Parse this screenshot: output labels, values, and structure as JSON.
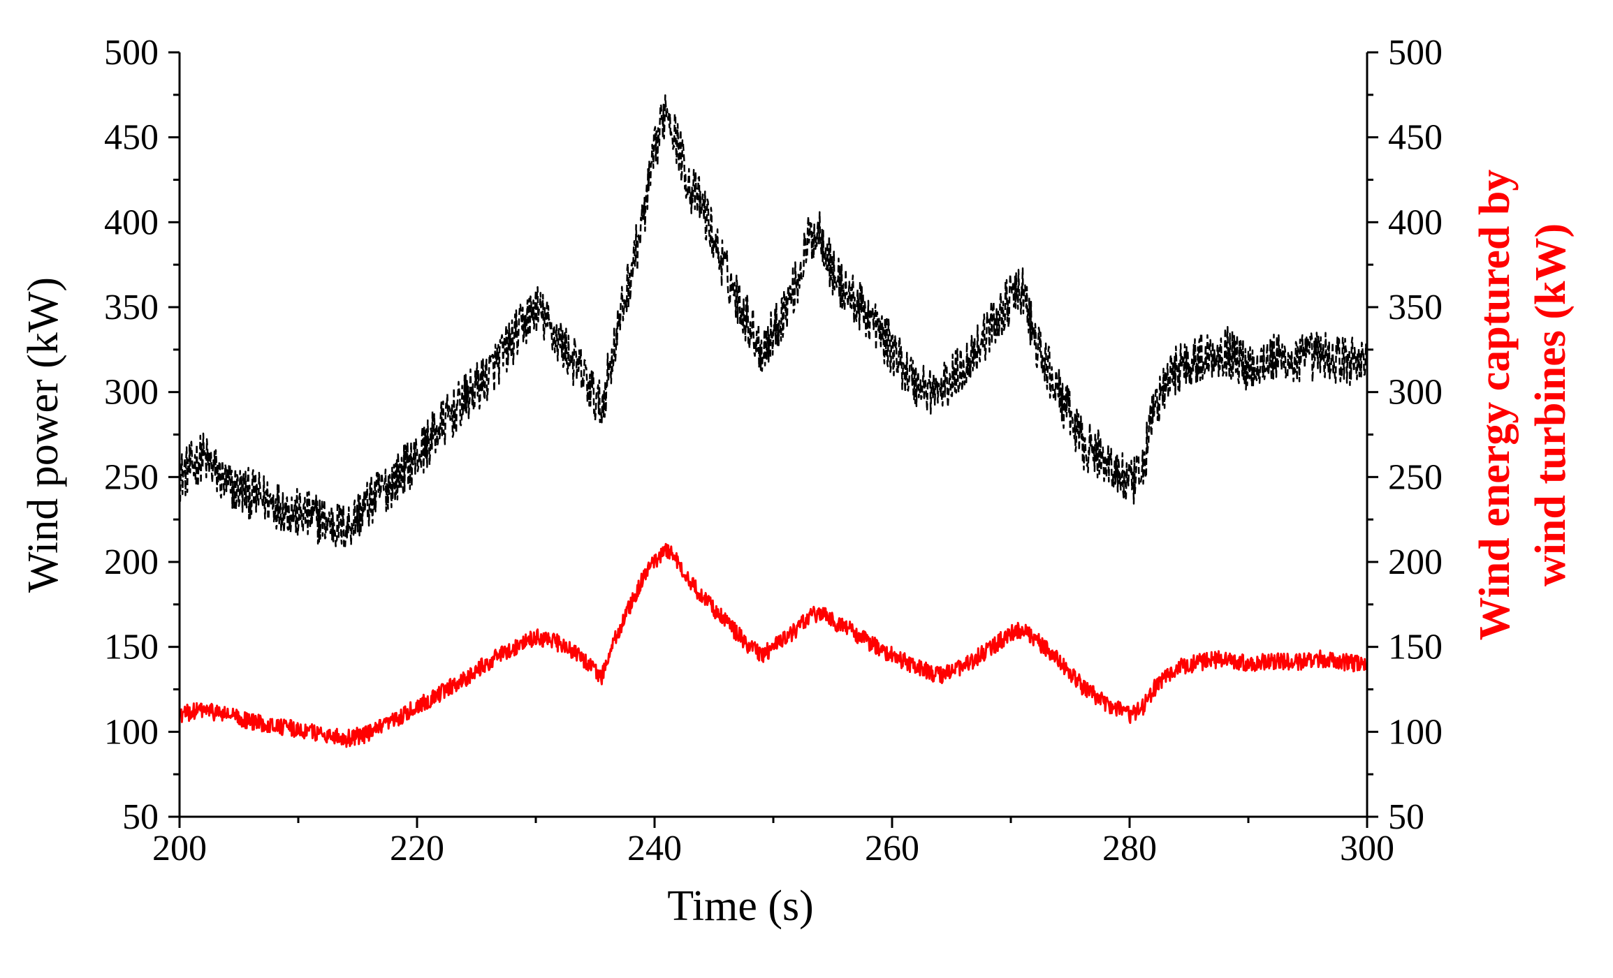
{
  "chart_data": {
    "type": "line",
    "title": "",
    "xlabel": "Time  (s)",
    "ylabel_left": "Wind power  (kW)",
    "ylabel_right": [
      "Wind energy captured by",
      "wind turbines  (kW)"
    ],
    "xlim": [
      200,
      300
    ],
    "ylim": [
      50,
      500
    ],
    "x_ticks": [
      200,
      220,
      240,
      260,
      280,
      300
    ],
    "y_ticks": [
      50,
      100,
      150,
      200,
      250,
      300,
      350,
      400,
      450,
      500
    ],
    "grid": false,
    "legend": "none",
    "series": [
      {
        "axis": "left",
        "color": "#000000",
        "style": "dashed",
        "x": [
          200,
          202,
          204,
          206,
          208,
          210,
          212,
          214,
          216,
          218,
          220,
          222,
          224,
          226,
          228,
          230,
          232,
          234,
          235.5,
          237,
          239,
          240,
          241,
          242,
          243,
          244,
          246,
          248,
          249,
          250,
          252,
          253,
          254,
          255,
          256,
          258,
          260,
          262,
          264,
          266,
          268,
          270,
          271,
          272,
          274,
          276,
          278,
          280,
          281,
          282,
          284,
          286,
          288,
          290,
          292,
          294,
          296,
          298,
          300
        ],
        "y": [
          250,
          262,
          245,
          240,
          235,
          228,
          225,
          220,
          235,
          248,
          262,
          280,
          295,
          310,
          330,
          350,
          330,
          310,
          290,
          340,
          400,
          440,
          470,
          445,
          420,
          410,
          370,
          340,
          325,
          335,
          365,
          390,
          395,
          370,
          360,
          345,
          325,
          305,
          300,
          315,
          335,
          355,
          360,
          330,
          300,
          270,
          260,
          245,
          250,
          290,
          315,
          320,
          325,
          315,
          320,
          318,
          322,
          318,
          320
        ],
        "noise_amplitude": 15
      },
      {
        "axis": "right",
        "color": "#ff0000",
        "style": "solid",
        "x": [
          200,
          202,
          204,
          206,
          208,
          210,
          212,
          214,
          216,
          218,
          220,
          222,
          224,
          226,
          228,
          230,
          232,
          234,
          235.5,
          237,
          239,
          240,
          241,
          242,
          243,
          244,
          246,
          248,
          249,
          250,
          252,
          253,
          254,
          255,
          256,
          258,
          260,
          262,
          264,
          266,
          268,
          270,
          271,
          272,
          274,
          276,
          278,
          280,
          281,
          282,
          284,
          286,
          288,
          290,
          292,
          294,
          296,
          298,
          300
        ],
        "y": [
          110,
          113,
          110,
          106,
          104,
          101,
          99,
          96,
          99,
          106,
          115,
          123,
          131,
          141,
          149,
          156,
          152,
          143,
          132,
          160,
          190,
          200,
          208,
          200,
          188,
          180,
          165,
          150,
          145,
          150,
          160,
          168,
          170,
          165,
          162,
          153,
          145,
          138,
          133,
          138,
          148,
          158,
          160,
          155,
          142,
          127,
          117,
          110,
          113,
          125,
          138,
          141,
          143,
          140,
          142,
          141,
          143,
          141,
          140
        ],
        "noise_amplitude": 5
      }
    ]
  }
}
